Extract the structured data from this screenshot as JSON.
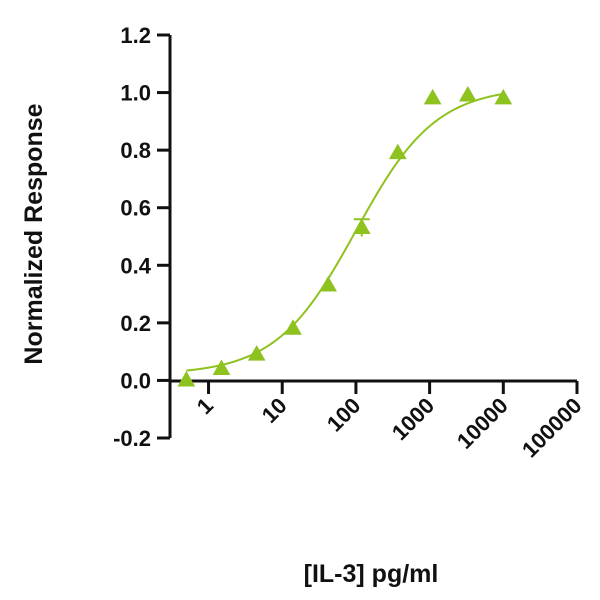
{
  "chart_data": {
    "type": "scatter",
    "title": "",
    "xlabel": "[IL-3] pg/ml",
    "ylabel": "Normalized Response",
    "x_scale": "log",
    "xlim": [
      0.3,
      100000
    ],
    "ylim": [
      -0.2,
      1.2
    ],
    "x_ticks": [
      1,
      10,
      100,
      1000,
      10000,
      100000
    ],
    "x_tick_labels": [
      "1",
      "10",
      "100",
      "1000",
      "10000",
      "100000"
    ],
    "y_ticks": [
      -0.2,
      0.0,
      0.2,
      0.4,
      0.6,
      0.8,
      1.0,
      1.2
    ],
    "y_tick_labels": [
      "-0.2",
      "0.0",
      "0.2",
      "0.4",
      "0.6",
      "0.8",
      "1.0",
      "1.2"
    ],
    "grid": false,
    "legend": "none",
    "marker": "triangle",
    "color": "#8dc21f",
    "series": [
      {
        "x": [
          0.5,
          1.5,
          4.5,
          14,
          42,
          120,
          370,
          1100,
          3300,
          10000
        ],
        "y": [
          0.0,
          0.04,
          0.09,
          0.18,
          0.33,
          0.53,
          0.79,
          0.98,
          0.99,
          0.98
        ],
        "error": [
          0,
          0,
          0,
          0,
          0,
          0.03,
          0,
          0,
          0,
          0
        ]
      }
    ],
    "fit_curve": {
      "type": "4PL",
      "bottom": 0.02,
      "top": 1.02,
      "ec50": 100,
      "hill": 0.8,
      "x_range": [
        0.5,
        10000
      ]
    }
  }
}
